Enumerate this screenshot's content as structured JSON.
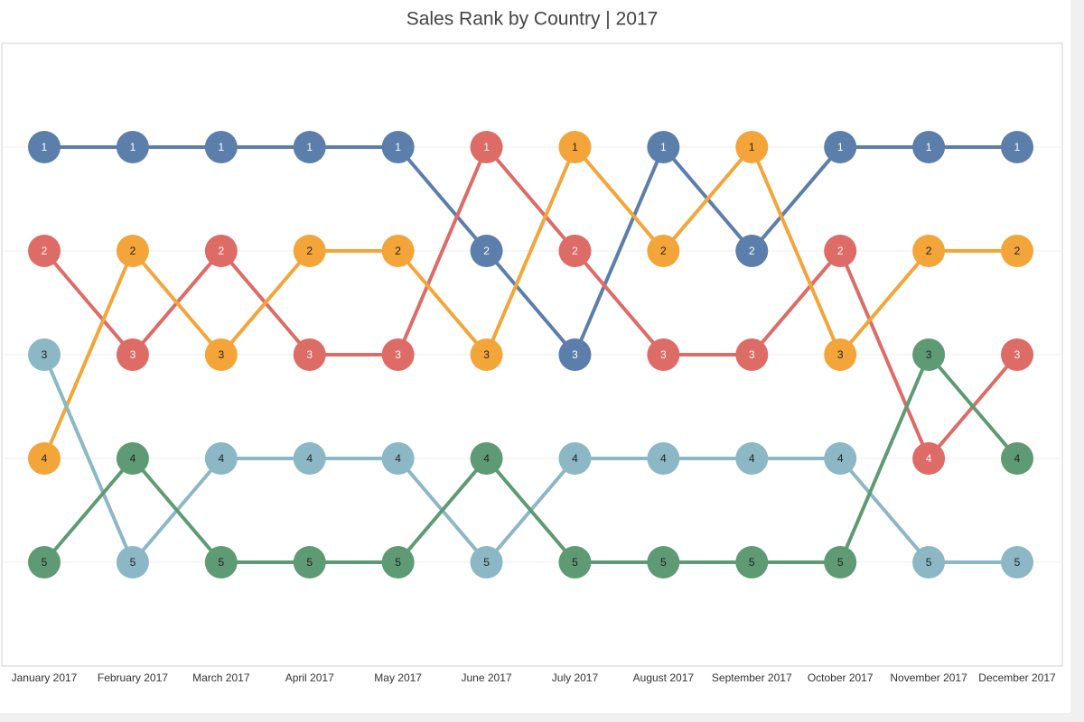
{
  "chart_data": {
    "type": "bump",
    "title": "Sales Rank by Country | 2017",
    "categories": [
      "January 2017",
      "February 2017",
      "March 2017",
      "April 2017",
      "May 2017",
      "June 2017",
      "July 2017",
      "August 2017",
      "September 2017",
      "October 2017",
      "November 2017",
      "December 2017"
    ],
    "ylim": [
      0,
      6
    ],
    "y_inverted": true,
    "yticks": [
      1,
      2,
      3,
      4,
      5
    ],
    "grid": true,
    "series": [
      {
        "color": "#5b7eab",
        "label_color": "#ffffff",
        "values": [
          1,
          1,
          1,
          1,
          1,
          2,
          3,
          1,
          2,
          1,
          1,
          1
        ]
      },
      {
        "color": "#dd6b66",
        "label_color": "#ffffff",
        "values": [
          2,
          3,
          2,
          3,
          3,
          1,
          2,
          3,
          3,
          2,
          4,
          3
        ]
      },
      {
        "color": "#f3a53a",
        "label_color": "#222222",
        "values": [
          4,
          2,
          3,
          2,
          2,
          3,
          1,
          2,
          1,
          3,
          2,
          2
        ]
      },
      {
        "color": "#8cb7c4",
        "label_color": "#222222",
        "values": [
          3,
          5,
          4,
          4,
          4,
          5,
          4,
          4,
          4,
          4,
          5,
          5
        ]
      },
      {
        "color": "#5e9a73",
        "label_color": "#222222",
        "values": [
          5,
          4,
          5,
          5,
          5,
          4,
          5,
          5,
          5,
          5,
          3,
          4
        ]
      }
    ]
  }
}
